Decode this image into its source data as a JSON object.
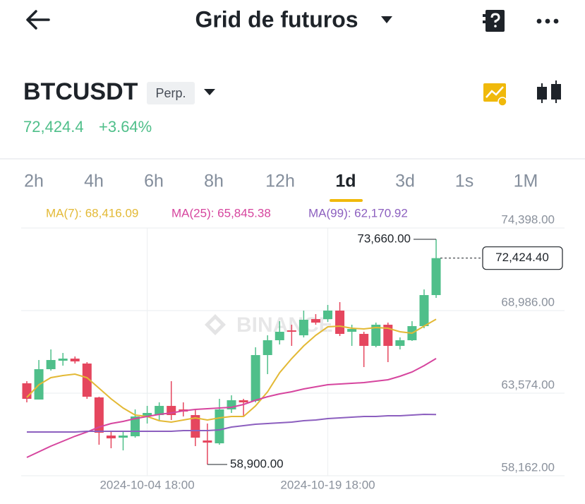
{
  "header": {
    "title": "Grid de futuros"
  },
  "symbol": {
    "name": "BTCUSDT",
    "contract": "Perp.",
    "price": "72,424.4",
    "change": "+3.64%"
  },
  "timeframes": [
    "2h",
    "4h",
    "6h",
    "8h",
    "12h",
    "1d",
    "3d",
    "1s",
    "1M"
  ],
  "chart_data": {
    "type": "candlestick",
    "watermark": "BINANCE",
    "up_color": "#4fbf8a",
    "down_color": "#e5465e",
    "categories": [
      null,
      null,
      null,
      null,
      null,
      null,
      null,
      null,
      null,
      null,
      "2024-10-04 18:00",
      null,
      null,
      null,
      null,
      null,
      null,
      null,
      null,
      null,
      null,
      null,
      null,
      null,
      null,
      "2024-10-19 18:00",
      null,
      null,
      null,
      null,
      null,
      null,
      null,
      null,
      null
    ],
    "open": [
      64221,
      63157,
      65146,
      65701,
      65840,
      65516,
      63296,
      60798,
      60659,
      60751,
      62047,
      62139,
      62740,
      62509,
      62139,
      60474,
      60289,
      62509,
      63111,
      63064,
      66071,
      67043,
      67690,
      67366,
      68430,
      68430,
      68986,
      67598,
      67459,
      66673,
      68060,
      66673,
      67043,
      67968,
      70003
    ],
    "high": [
      64360,
      65747,
      66441,
      66210,
      65979,
      65609,
      63342,
      61029,
      61121,
      62509,
      62740,
      62972,
      64360,
      62972,
      62509,
      61584,
      63203,
      63434,
      63203,
      66580,
      67366,
      68292,
      68060,
      68986,
      68754,
      69356,
      69541,
      68060,
      67598,
      68199,
      68199,
      67228,
      68292,
      70373,
      73660
    ],
    "low": [
      62972,
      63157,
      65053,
      65377,
      65516,
      63203,
      60196,
      59965,
      59826,
      60659,
      61584,
      61815,
      61815,
      62047,
      60104,
      58900,
      60196,
      62278,
      62047,
      62972,
      64822,
      66765,
      66673,
      67228,
      68060,
      68245,
      67320,
      66673,
      65285,
      66580,
      65609,
      66441,
      66996,
      67829,
      69818
    ],
    "close": [
      63203,
      65146,
      65747,
      65840,
      65655,
      63342,
      60983,
      60613,
      60798,
      62047,
      62278,
      62740,
      62139,
      62370,
      60659,
      60335,
      62509,
      63111,
      62972,
      66071,
      67043,
      67598,
      67598,
      68384,
      68199,
      68986,
      67459,
      67783,
      66673,
      68060,
      66673,
      67043,
      67968,
      70003,
      72424.4
    ],
    "series": [
      {
        "name": "MA(7): 68,416.09",
        "color": "#e3b935",
        "values": [
          63296,
          64128,
          64591,
          64730,
          64822,
          64591,
          63897,
          63203,
          62602,
          62139,
          62047,
          61769,
          61677,
          61815,
          61954,
          61815,
          61954,
          62047,
          62047,
          62740,
          63666,
          64915,
          65840,
          66673,
          67366,
          67922,
          67968,
          67829,
          67783,
          67875,
          67829,
          67598,
          67505,
          67968,
          68416.09
        ]
      },
      {
        "name": "MA(25): 65,845.38",
        "color": "#d6459e",
        "values": [
          59364,
          59734,
          60104,
          60427,
          60751,
          61029,
          61353,
          61584,
          61723,
          61908,
          62047,
          62185,
          62278,
          62417,
          62509,
          62555,
          62602,
          62648,
          62833,
          63111,
          63342,
          63527,
          63666,
          63851,
          63990,
          64128,
          64175,
          64221,
          64267,
          64360,
          64452,
          64683,
          64961,
          65377,
          65845.38
        ]
      },
      {
        "name": "MA(99): 62,170.92",
        "color": "#8c5fbf",
        "values": [
          61029,
          61029,
          61029,
          61029,
          61029,
          61075,
          61075,
          61075,
          61075,
          61075,
          61075,
          61075,
          61075,
          61121,
          61121,
          61121,
          61168,
          61353,
          61445,
          61538,
          61584,
          61630,
          61677,
          61769,
          61815,
          61908,
          61954,
          62000,
          62047,
          62047,
          62093,
          62093,
          62139,
          62185,
          62170.92
        ]
      }
    ],
    "ylim": [
      58162,
      74398
    ],
    "yticks": [
      {
        "value": 74398,
        "label": "74,398.00"
      },
      {
        "value": 68986,
        "label": "68,986.00"
      },
      {
        "value": 63574,
        "label": "63,574.00"
      },
      {
        "value": 58162,
        "label": "58,162.00"
      }
    ],
    "grid": true,
    "high_marker": {
      "value": 73660,
      "label": "73,660.00"
    },
    "low_marker": {
      "value": 58900,
      "label": "58,900.00"
    },
    "last_price": {
      "value": 72424.4,
      "label": "72,424.40"
    }
  }
}
